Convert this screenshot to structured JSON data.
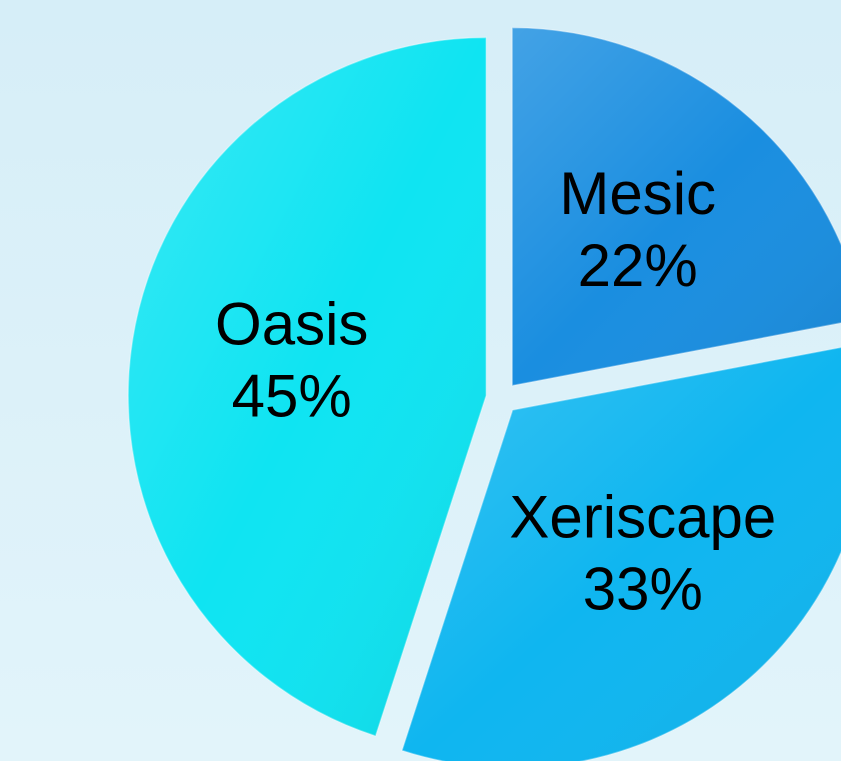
{
  "chart_data": {
    "type": "pie",
    "categories": [
      "Mesic",
      "Xeriscape",
      "Oasis"
    ],
    "values": [
      22,
      33,
      45
    ],
    "value_labels": [
      "22%",
      "33%",
      "45%"
    ],
    "colors": [
      "#1a8ee0",
      "#0fb6f0",
      "#0fe4f2"
    ]
  }
}
